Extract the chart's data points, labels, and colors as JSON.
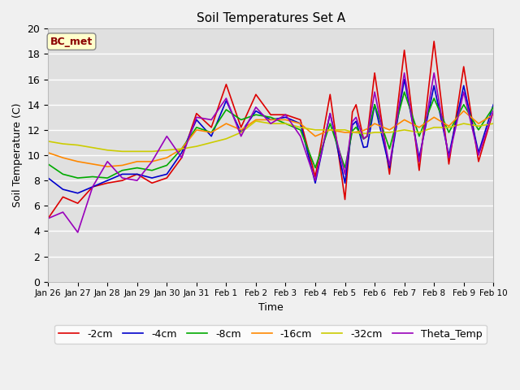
{
  "title": "Soil Temperatures Set A",
  "xlabel": "Time",
  "ylabel": "Soil Temperature (C)",
  "ylim": [
    0,
    20
  ],
  "fig_bg": "#f0f0f0",
  "plot_bg": "#e0e0e0",
  "annotation_text": "BC_met",
  "annotation_color": "#8b0000",
  "annotation_bg": "#ffffcc",
  "series": {
    "-2cm": {
      "color": "#dd0000",
      "lw": 1.2
    },
    "-4cm": {
      "color": "#0000cc",
      "lw": 1.2
    },
    "-8cm": {
      "color": "#00aa00",
      "lw": 1.2
    },
    "-16cm": {
      "color": "#ff8800",
      "lw": 1.2
    },
    "-32cm": {
      "color": "#cccc00",
      "lw": 1.2
    },
    "Theta_Temp": {
      "color": "#9900bb",
      "lw": 1.2
    }
  },
  "xtick_labels": [
    "Jan 26",
    "Jan 27",
    "Jan 28",
    "Jan 29",
    "Jan 30",
    "Jan 31",
    "Feb 1",
    "Feb 2",
    "Feb 3",
    "Feb 4",
    "Feb 5",
    "Feb 6",
    "Feb 7",
    "Feb 8",
    "Feb 9",
    "Feb 10"
  ],
  "n_ticks": 16
}
